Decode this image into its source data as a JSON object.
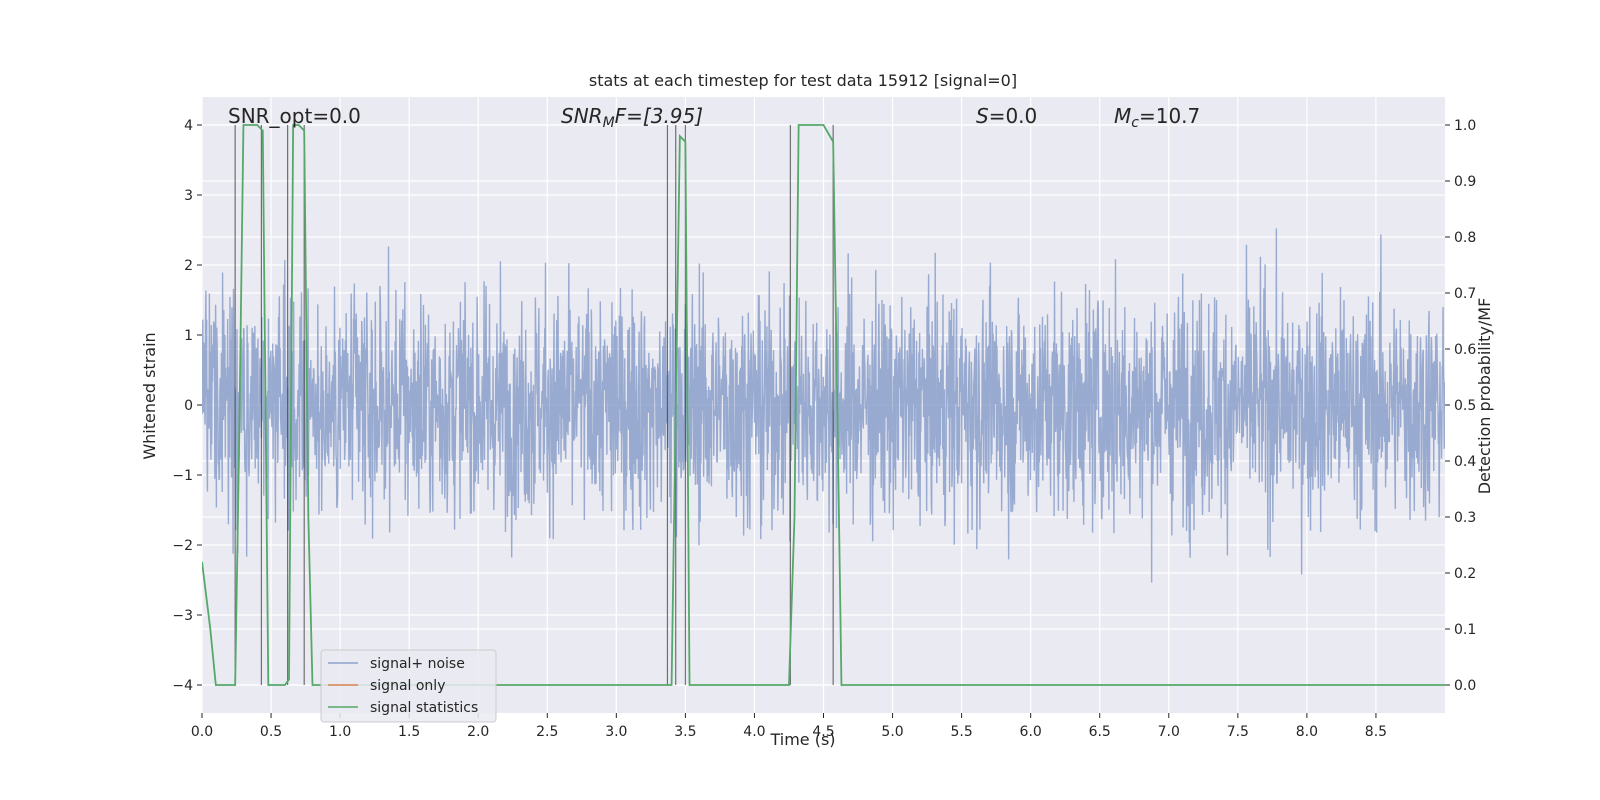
{
  "chart_data": {
    "type": "line",
    "title": "stats at each timestep for test data 15912 [signal=0]",
    "xlabel": "Time (s)",
    "ylabel": "Whitened strain",
    "y2label": "Detection probability/MF",
    "xlim": [
      0.0,
      9.0
    ],
    "ylim": [
      -4.4,
      4.4
    ],
    "y2lim": [
      -0.05,
      1.05
    ],
    "xticks": [
      "0.0",
      "0.5",
      "1.0",
      "1.5",
      "2.0",
      "2.5",
      "3.0",
      "3.5",
      "4.0",
      "4.5",
      "5.0",
      "5.5",
      "6.0",
      "6.5",
      "7.0",
      "7.5",
      "8.0",
      "8.5"
    ],
    "yticks": [
      "4",
      "3",
      "2",
      "1",
      "0",
      "−1",
      "−2",
      "−3",
      "−4"
    ],
    "y2ticks": [
      "1.0",
      "0.9",
      "0.8",
      "0.7",
      "0.6",
      "0.5",
      "0.4",
      "0.3",
      "0.2",
      "0.1",
      "0.0"
    ],
    "grid": true,
    "legend_position": "lower-left",
    "annotations": {
      "snr_opt": "SNR_opt=0.0",
      "snr_mf_base": "SNR",
      "snr_mf_sub": "M",
      "snr_mf_rest": "F=[3.95]",
      "s_italic": "S",
      "s_rest": "=0.0",
      "mc_base": "M",
      "mc_sub": "c",
      "mc_rest": "=10.7"
    },
    "series": [
      {
        "name": "signal+ noise",
        "color": "#8fa3cc",
        "noise_amplitude_typical": 1.6,
        "noise_amplitude_peak": 3.95
      },
      {
        "name": "signal only",
        "color": "#dd8452",
        "values": []
      },
      {
        "name": "signal statistics",
        "color": "#55a868",
        "axis": "right",
        "x": [
          0.0,
          0.06,
          0.1,
          0.24,
          0.27,
          0.3,
          0.4,
          0.44,
          0.48,
          0.6,
          0.63,
          0.66,
          0.7,
          0.74,
          0.77,
          0.8,
          0.82,
          3.2,
          3.37,
          3.4,
          3.46,
          3.5,
          3.53,
          3.6,
          4.2,
          4.25,
          4.29,
          4.32,
          4.5,
          4.57,
          4.6,
          4.63,
          5.2,
          9.0
        ],
        "y": [
          0.22,
          0.1,
          0.0,
          0.0,
          0.45,
          1.0,
          1.0,
          0.99,
          0.0,
          0.0,
          0.01,
          1.0,
          1.0,
          0.99,
          0.3,
          0.0,
          0.0,
          0.0,
          0.0,
          0.0,
          0.98,
          0.97,
          0.0,
          0.0,
          0.0,
          0.0,
          0.3,
          1.0,
          1.0,
          0.97,
          0.5,
          0.0,
          0.0,
          0.0
        ]
      }
    ],
    "vertical_markers_x": [
      0.24,
      0.43,
      0.62,
      0.74,
      3.37,
      3.43,
      3.5,
      4.26,
      4.57
    ]
  }
}
